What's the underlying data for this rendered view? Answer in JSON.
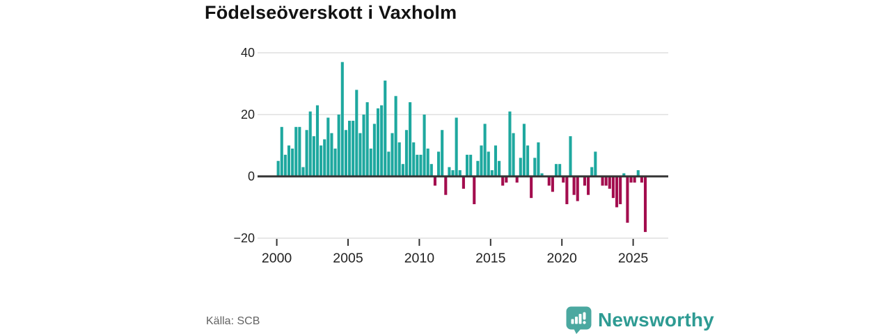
{
  "title": "Födelseöverskott i Vaxholm",
  "source": "Källa: SCB",
  "logo": {
    "brand": "Newsworthy"
  },
  "colors": {
    "positive": "#1EA89F",
    "negative": "#A30D4E",
    "grid": "#DFDFDF",
    "axis": "#333333",
    "tick_label": "#222222",
    "logo_icon": "#4BA8A0",
    "logo_text": "#2E9B93"
  },
  "chart_data": {
    "type": "bar",
    "title": "Födelseöverskott i Vaxholm",
    "frequency": "quarterly",
    "ylim": [
      -20,
      40
    ],
    "grid": true,
    "yticks": [
      40,
      20,
      0,
      -20
    ],
    "ytick_labels": [
      "40",
      "20",
      "0",
      "−20"
    ],
    "xticks": [
      2000,
      2005,
      2010,
      2015,
      2020,
      2025
    ],
    "series": [
      {
        "year": 2000,
        "values": [
          5,
          16,
          7,
          10
        ]
      },
      {
        "year": 2001,
        "values": [
          9,
          16,
          16,
          3
        ]
      },
      {
        "year": 2002,
        "values": [
          15,
          21,
          13,
          23
        ]
      },
      {
        "year": 2003,
        "values": [
          10,
          12,
          19,
          14
        ]
      },
      {
        "year": 2004,
        "values": [
          9,
          20,
          37,
          15
        ]
      },
      {
        "year": 2005,
        "values": [
          18,
          18,
          28,
          14
        ]
      },
      {
        "year": 2006,
        "values": [
          20,
          24,
          9,
          17
        ]
      },
      {
        "year": 2007,
        "values": [
          22,
          23,
          31,
          8
        ]
      },
      {
        "year": 2008,
        "values": [
          14,
          26,
          11,
          4
        ]
      },
      {
        "year": 2009,
        "values": [
          15,
          24,
          11,
          7
        ]
      },
      {
        "year": 2010,
        "values": [
          7,
          20,
          9,
          4
        ]
      },
      {
        "year": 2011,
        "values": [
          -3,
          8,
          15,
          -6
        ]
      },
      {
        "year": 2012,
        "values": [
          3,
          2,
          19,
          2
        ]
      },
      {
        "year": 2013,
        "values": [
          -4,
          7,
          7,
          -9
        ]
      },
      {
        "year": 2014,
        "values": [
          5,
          10,
          17,
          8
        ]
      },
      {
        "year": 2015,
        "values": [
          2,
          10,
          5,
          -3
        ]
      },
      {
        "year": 2016,
        "values": [
          -2,
          21,
          14,
          -2
        ]
      },
      {
        "year": 2017,
        "values": [
          6,
          17,
          10,
          -7
        ]
      },
      {
        "year": 2018,
        "values": [
          6,
          11,
          1,
          0
        ]
      },
      {
        "year": 2019,
        "values": [
          -3,
          -5,
          4,
          4
        ]
      },
      {
        "year": 2020,
        "values": [
          -2,
          -9,
          13,
          -6
        ]
      },
      {
        "year": 2021,
        "values": [
          -8,
          0,
          -3,
          -6
        ]
      },
      {
        "year": 2022,
        "values": [
          3,
          8,
          0,
          -3
        ]
      },
      {
        "year": 2023,
        "values": [
          -3,
          -4,
          -7,
          -10
        ]
      },
      {
        "year": 2024,
        "values": [
          -9,
          1,
          -15,
          -2
        ]
      },
      {
        "year": 2025,
        "values": [
          -2,
          2,
          -2,
          -18
        ]
      }
    ]
  }
}
